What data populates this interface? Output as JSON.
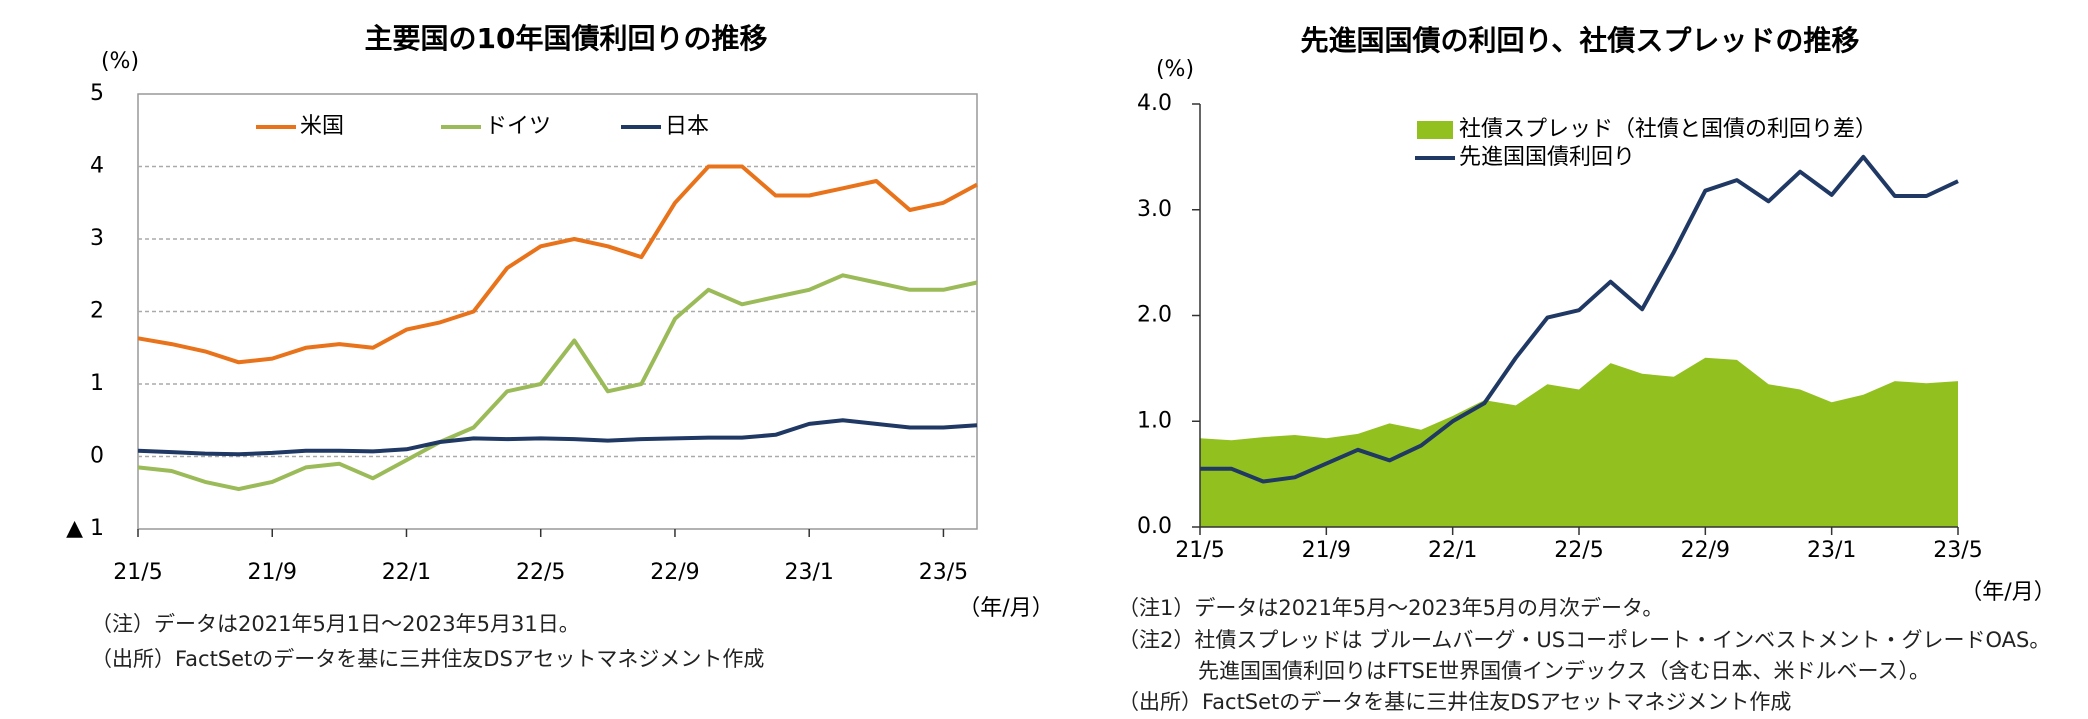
{
  "chart_data": [
    {
      "type": "line",
      "title": "主要国の10年国債利回りの推移",
      "y_unit": "(%)",
      "x_unit": "（年/月）",
      "categories": [
        "21/5",
        null,
        null,
        null,
        "21/9",
        null,
        null,
        null,
        "22/1",
        null,
        null,
        null,
        "22/5",
        null,
        null,
        null,
        "22/9",
        null,
        null,
        null,
        "23/1",
        null,
        null,
        null,
        "23/5",
        null
      ],
      "series": [
        {
          "name": "米国",
          "color": "#e8731a",
          "values": [
            1.63,
            1.55,
            1.45,
            1.3,
            1.35,
            1.5,
            1.55,
            1.5,
            1.75,
            1.85,
            2.0,
            2.6,
            2.9,
            3.0,
            2.9,
            2.75,
            3.5,
            4.0,
            4.0,
            3.6,
            3.6,
            3.7,
            3.8,
            3.4,
            3.5,
            3.75
          ]
        },
        {
          "name": "ドイツ",
          "color": "#9bbb59",
          "values": [
            -0.15,
            -0.2,
            -0.35,
            -0.45,
            -0.35,
            -0.15,
            -0.1,
            -0.3,
            -0.05,
            0.2,
            0.4,
            0.9,
            1.0,
            1.6,
            0.9,
            1.0,
            1.9,
            2.3,
            2.1,
            2.2,
            2.3,
            2.5,
            2.4,
            2.3,
            2.3,
            2.4
          ]
        },
        {
          "name": "日本",
          "color": "#1f3864",
          "values": [
            0.08,
            0.06,
            0.04,
            0.03,
            0.05,
            0.08,
            0.08,
            0.07,
            0.1,
            0.2,
            0.25,
            0.24,
            0.25,
            0.24,
            0.22,
            0.24,
            0.25,
            0.26,
            0.26,
            0.3,
            0.45,
            0.5,
            0.45,
            0.4,
            0.4,
            0.43
          ]
        }
      ],
      "ylim": [
        -1,
        5
      ],
      "yticks": [
        {
          "value": -1,
          "label": "▲ 1"
        },
        0,
        1,
        2,
        3,
        4,
        5
      ],
      "grid": true,
      "legend": "top",
      "notes": [
        "（注）データは2021年5月1日～2023年5月31日。",
        "（出所）FactSetのデータを基に三井住友DSアセットマネジメント作成"
      ]
    },
    {
      "type": "combo",
      "title": "先進国国債の利回り、社債スプレッドの推移",
      "y_unit": "(%)",
      "x_unit": "（年/月）",
      "categories": [
        "21/5",
        null,
        null,
        null,
        "21/9",
        null,
        null,
        null,
        "22/1",
        null,
        null,
        null,
        "22/5",
        null,
        null,
        null,
        "22/9",
        null,
        null,
        null,
        "23/1",
        null,
        null,
        null,
        "23/5"
      ],
      "series": [
        {
          "name": "社債スプレッド（社債と国債の利回り差）",
          "type": "area",
          "color": "#92c11f",
          "values": [
            0.84,
            0.82,
            0.85,
            0.87,
            0.84,
            0.88,
            0.98,
            0.92,
            1.05,
            1.2,
            1.15,
            1.35,
            1.3,
            1.55,
            1.45,
            1.42,
            1.6,
            1.58,
            1.35,
            1.3,
            1.18,
            1.25,
            1.38,
            1.36,
            1.38
          ]
        },
        {
          "name": "先進国国債利回り",
          "type": "line",
          "color": "#1f3864",
          "values": [
            0.55,
            0.55,
            0.43,
            0.47,
            0.6,
            0.73,
            0.63,
            0.77,
            1.0,
            1.17,
            1.6,
            1.98,
            2.05,
            2.32,
            2.06,
            2.6,
            3.18,
            3.28,
            3.08,
            3.36,
            3.14,
            3.5,
            3.13,
            3.13,
            3.27
          ]
        }
      ],
      "ylim": [
        0,
        4
      ],
      "yticks": [
        {
          "value": 0,
          "label": "0.0"
        },
        {
          "value": 1,
          "label": "1.0"
        },
        {
          "value": 2,
          "label": "2.0"
        },
        {
          "value": 3,
          "label": "3.0"
        },
        {
          "value": 4,
          "label": "4.0"
        }
      ],
      "grid": false,
      "legend": "upper left",
      "notes": [
        "（注1）データは2021年5月～2023年5月の月次データ。",
        "（注2）社債スプレッドは ブルームバーグ・USコーポレート・インベストメント・グレードOAS。",
        "先進国国債利回りはFTSE世界国債インデックス（含む日本、米ドルベース）。",
        "（出所）FactSetのデータを基に三井住友DSアセットマネジメント作成"
      ]
    }
  ]
}
